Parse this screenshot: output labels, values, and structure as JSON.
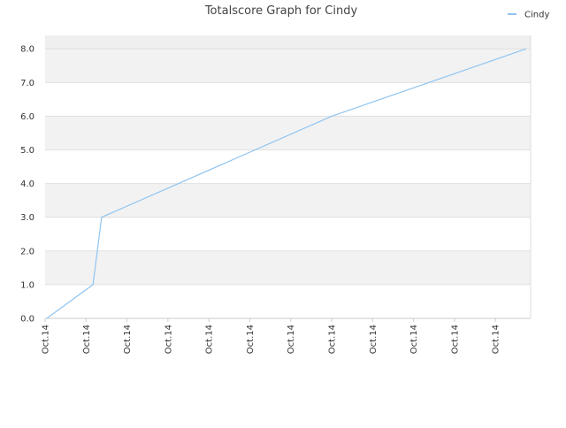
{
  "chart_data": {
    "type": "line",
    "title": "Totalscore Graph for Cindy",
    "x": [
      0.04,
      1.17,
      1.38,
      7.0,
      11.75
    ],
    "series": [
      {
        "name": "Cindy",
        "color": "#90c4f0",
        "values": [
          0,
          1,
          3,
          6,
          8
        ]
      }
    ],
    "xlim": [
      0,
      11.86
    ],
    "xticks": [
      {
        "value": 0,
        "label": "Oct.14"
      },
      {
        "value": 1,
        "label": "Oct.14"
      },
      {
        "value": 2,
        "label": "Oct.14"
      },
      {
        "value": 3,
        "label": "Oct.14"
      },
      {
        "value": 4,
        "label": "Oct.14"
      },
      {
        "value": 5,
        "label": "Oct.14"
      },
      {
        "value": 6,
        "label": "Oct.14"
      },
      {
        "value": 7,
        "label": "Oct.14"
      },
      {
        "value": 8,
        "label": "Oct.14"
      },
      {
        "value": 9,
        "label": "Oct.14"
      },
      {
        "value": 10,
        "label": "Oct.14"
      },
      {
        "value": 11,
        "label": "Oct.14"
      }
    ],
    "ylim": [
      0,
      8.4
    ],
    "yticks": [
      {
        "value": 0,
        "label": "0.0"
      },
      {
        "value": 1,
        "label": "1.0"
      },
      {
        "value": 2,
        "label": "2.0"
      },
      {
        "value": 3,
        "label": "3.0"
      },
      {
        "value": 4,
        "label": "4.0"
      },
      {
        "value": 5,
        "label": "5.0"
      },
      {
        "value": 6,
        "label": "6.0"
      },
      {
        "value": 7,
        "label": "7.0"
      },
      {
        "value": 8,
        "label": "8.0"
      }
    ],
    "grid": true,
    "legend": "top-right"
  }
}
